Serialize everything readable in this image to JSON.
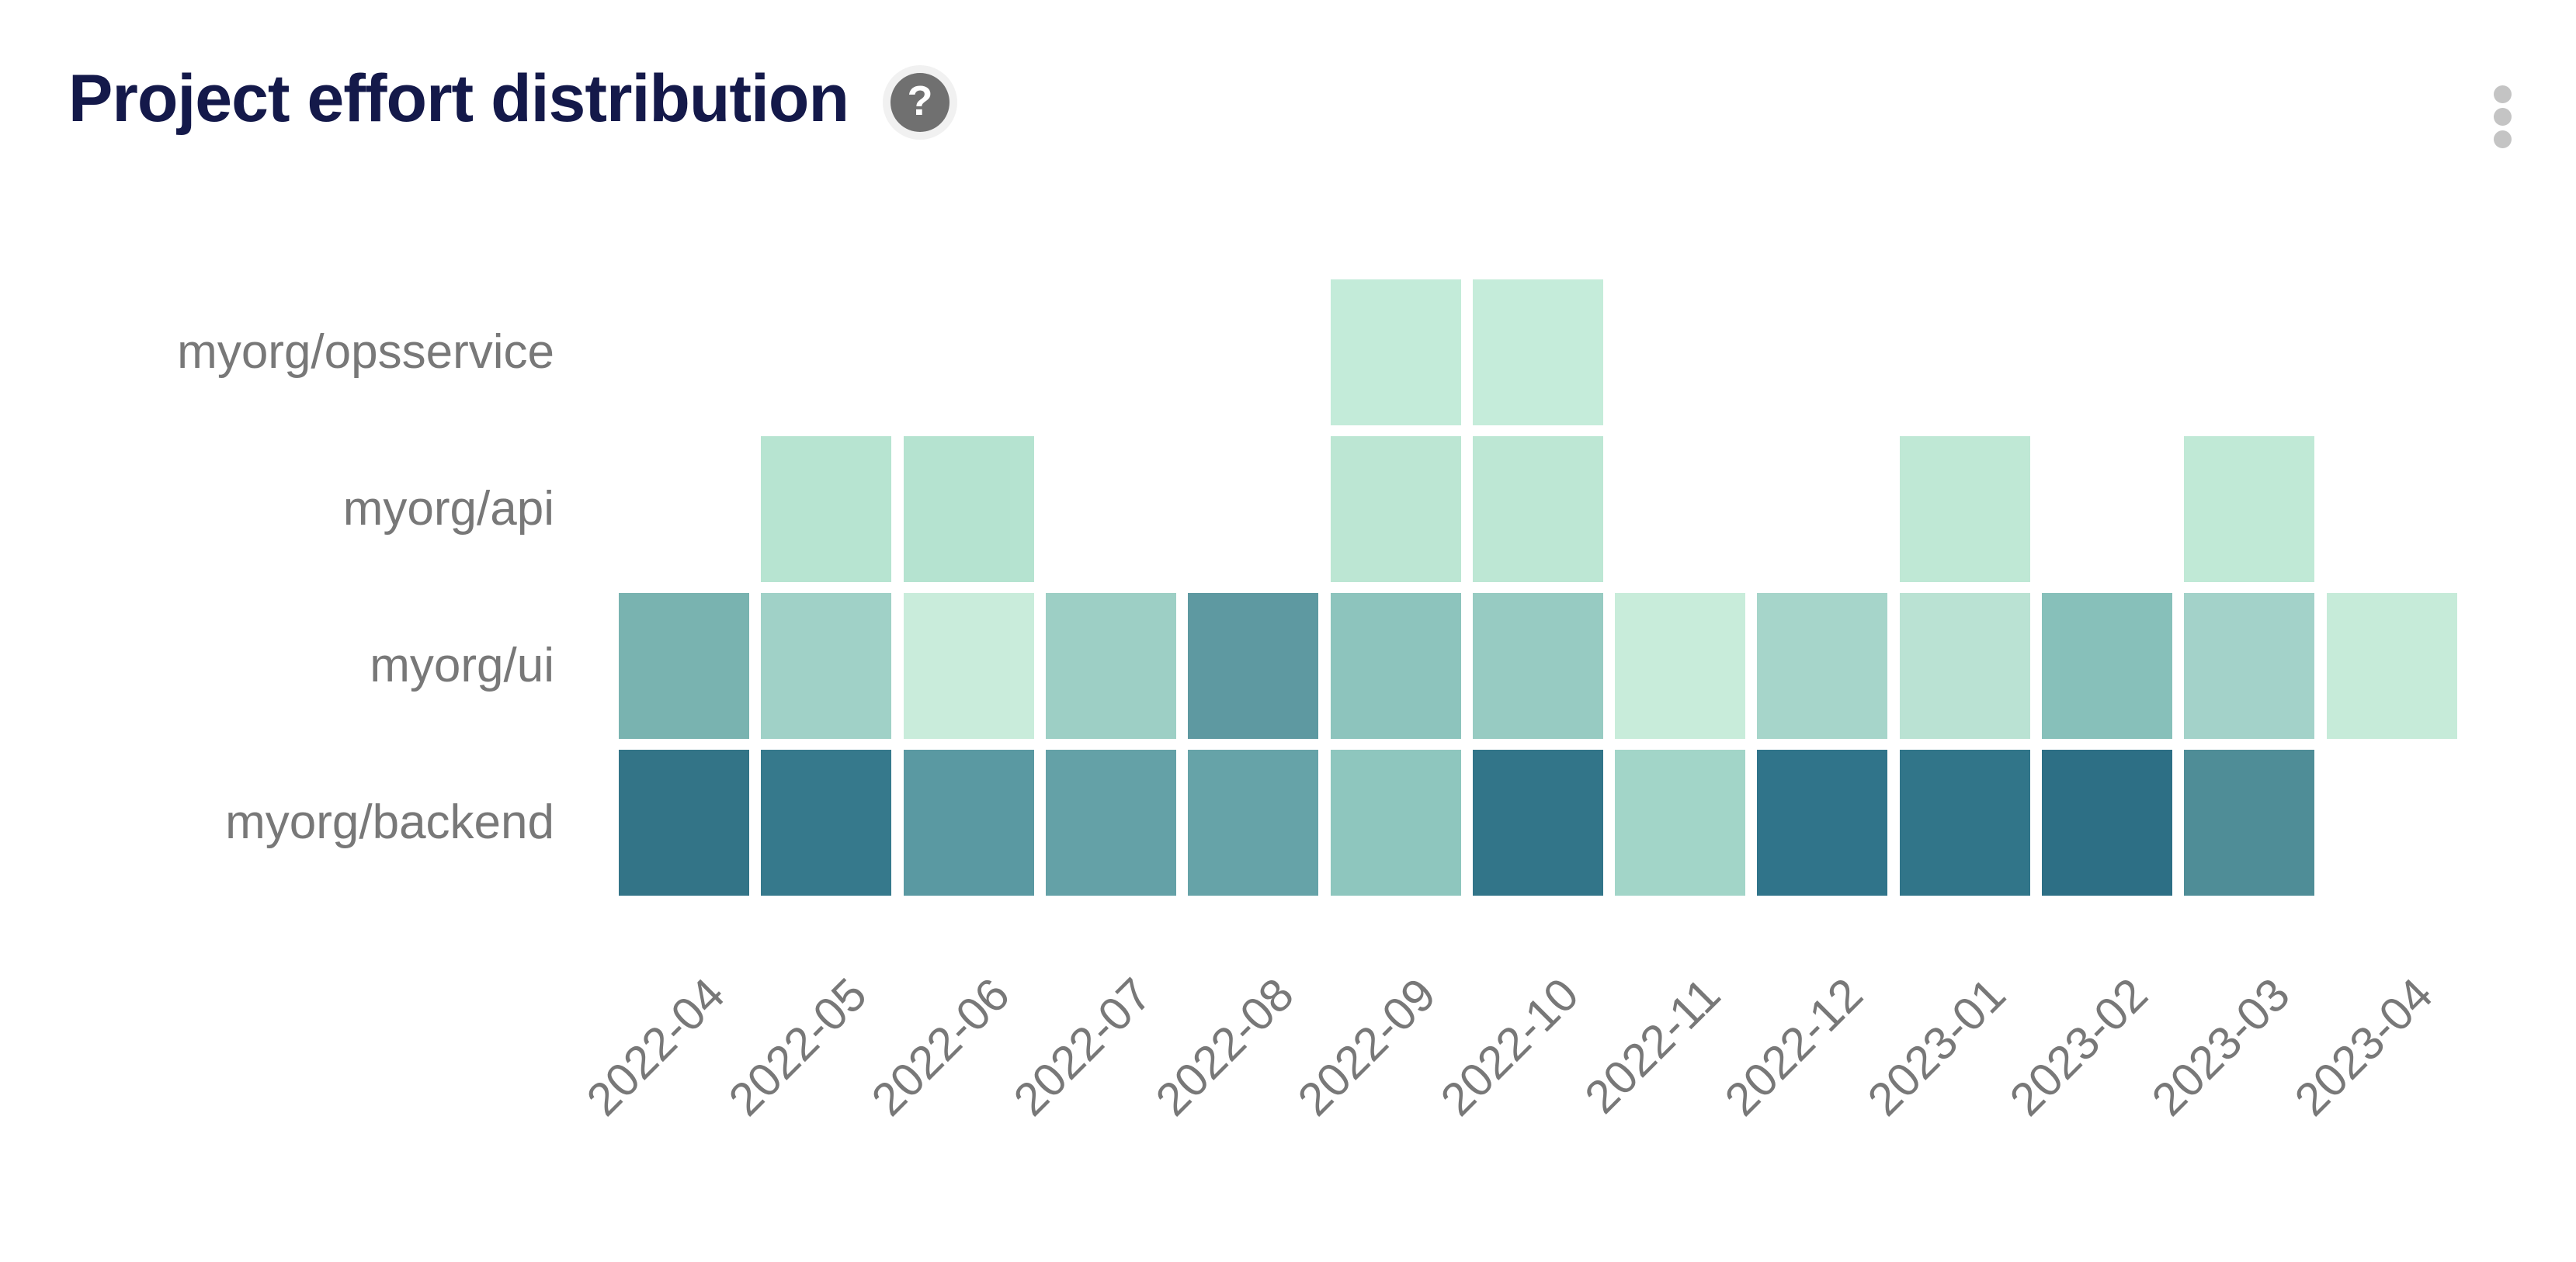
{
  "header": {
    "title": "Project effort distribution",
    "help_glyph": "?",
    "help_icon": "question-mark-icon",
    "menu_icon": "kebab-menu-icon"
  },
  "colors": {
    "background": "#ffffff",
    "title_text": "#14194a",
    "axis_label_text": "#787878",
    "help_circle": "#707070",
    "menu_dots": "#c4c4c4"
  },
  "chart_data": {
    "type": "heatmap",
    "title": "Project effort distribution",
    "x_categories": [
      "2022-04",
      "2022-05",
      "2022-06",
      "2022-07",
      "2022-08",
      "2022-09",
      "2022-10",
      "2022-11",
      "2022-12",
      "2023-01",
      "2023-02",
      "2023-03",
      "2023-04"
    ],
    "y_categories": [
      "myorg/opsservice",
      "myorg/api",
      "myorg/ui",
      "myorg/backend"
    ],
    "cell_colors": {
      "myorg/opsservice": [
        null,
        null,
        null,
        null,
        null,
        "#c3ebd9",
        "#c5ecda",
        null,
        null,
        null,
        null,
        null,
        null
      ],
      "myorg/api": [
        null,
        "#b7e4d1",
        "#b5e3d0",
        null,
        null,
        "#bce6d3",
        "#bde7d4",
        null,
        null,
        "#bfe8d5",
        null,
        "#c0e9d6",
        null
      ],
      "myorg/ui": [
        "#79b3b0",
        "#a0d1c7",
        "#c9ecdb",
        "#9dcfc5",
        "#5e99a1",
        "#8dc4bd",
        "#97cbc2",
        "#c8ecda",
        "#a6d5ca",
        "#bae2d3",
        "#87c0ba",
        "#a3d2c9",
        "#c6ebd9"
      ],
      "myorg/backend": [
        "#337487",
        "#36798c",
        "#5a99a2",
        "#64a1a7",
        "#66a3a8",
        "#8ec6be",
        "#327589",
        "#a2d5c8",
        "#30748a",
        "#317589",
        "#2d6f85",
        "#4f8d97",
        null
      ]
    },
    "color_scale": {
      "low": "#cdeede",
      "high": "#2d6f85",
      "meaning": "darker cell = higher effort share"
    },
    "legend_position": "none",
    "grid_lines": "off",
    "x_tick_rotation_deg": 45
  }
}
